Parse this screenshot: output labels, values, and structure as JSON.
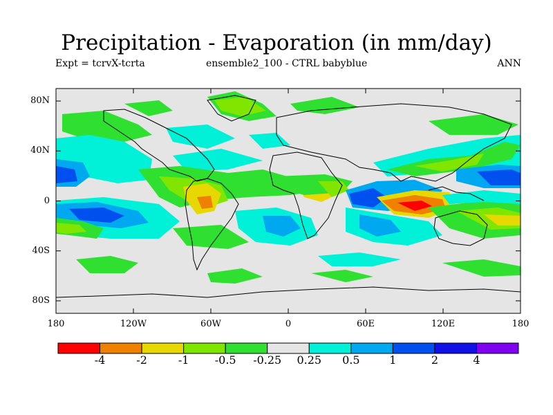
{
  "title": "Precipitation - Evaporation (in mm/day)",
  "subtitle_left": "Expt = tcrvX-tcrta",
  "subtitle_mid": "ensemble2_100 - CTRL babyblue",
  "subtitle_right": "ANN",
  "map": {
    "projection": "cylindrical-equidistant",
    "lon_range": [
      -180,
      180
    ],
    "lat_range": [
      -90,
      90
    ],
    "background_color": "#e5e5e5",
    "lat_ticks": [
      {
        "value": 80,
        "label": "80N"
      },
      {
        "value": 40,
        "label": "40N"
      },
      {
        "value": 0,
        "label": "0"
      },
      {
        "value": -40,
        "label": "40S"
      },
      {
        "value": -80,
        "label": "80S"
      }
    ],
    "lon_ticks": [
      {
        "value": -180,
        "label": "180"
      },
      {
        "value": -120,
        "label": "120W"
      },
      {
        "value": -60,
        "label": "60W"
      },
      {
        "value": 0,
        "label": "0"
      },
      {
        "value": 60,
        "label": "60E"
      },
      {
        "value": 120,
        "label": "120E"
      },
      {
        "value": 180,
        "label": "180"
      }
    ]
  },
  "colorbar": {
    "colors": [
      "#ff0000",
      "#f08000",
      "#e6d800",
      "#80e600",
      "#30e030",
      "#e5e5e5",
      "#00f0d8",
      "#00a8f0",
      "#0050f0",
      "#1010e8",
      "#8000f0"
    ],
    "labels": [
      "-4",
      "-2",
      "-1",
      "-0.5",
      "-0.25",
      "0.25",
      "0.5",
      "1",
      "2",
      "4"
    ]
  }
}
